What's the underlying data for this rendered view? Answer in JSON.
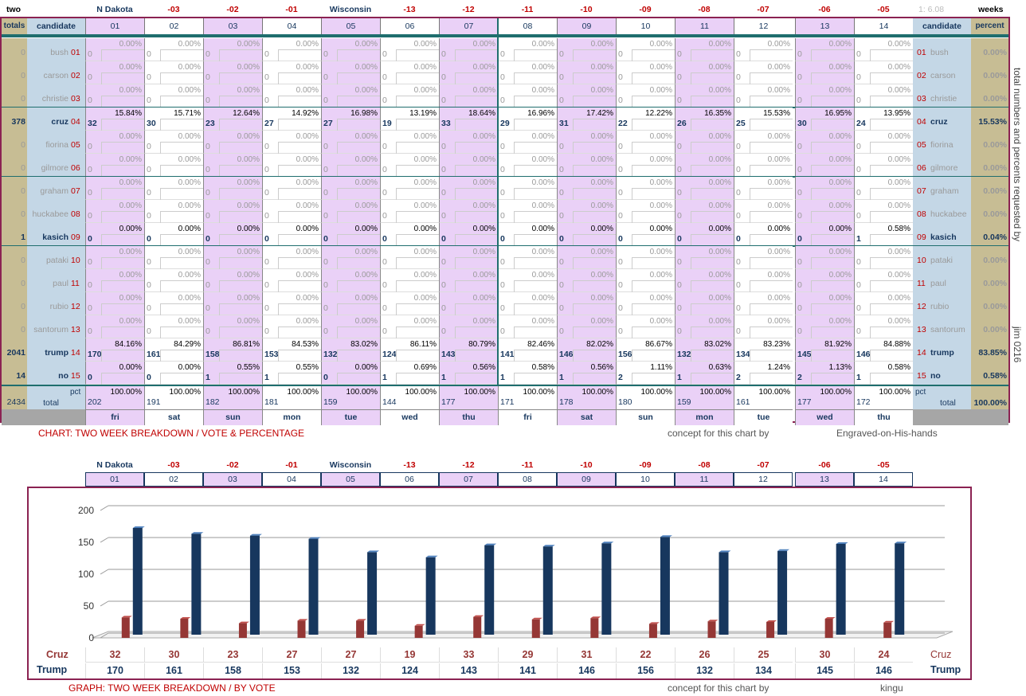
{
  "top": {
    "left_label": "two",
    "right_label": "weeks",
    "version_label": "1: 6.08",
    "date_labels": [
      "N Dakota",
      "-03",
      "-02",
      "-01",
      "Wisconsin",
      "-13",
      "-12",
      "-11",
      "-10",
      "-09",
      "-08",
      "-07",
      "-06",
      "-05"
    ],
    "totals_header": "totals",
    "candidate_header": "candidate",
    "percent_header": "percent",
    "columns": [
      "01",
      "02",
      "03",
      "04",
      "05",
      "06",
      "07",
      "08",
      "09",
      "10",
      "11",
      "12",
      "13",
      "14"
    ],
    "days": [
      "fri",
      "sat",
      "sun",
      "mon",
      "tue",
      "wed",
      "thu",
      "fri",
      "sat",
      "sun",
      "mon",
      "tue",
      "wed",
      "thu"
    ],
    "pct_label": "pct",
    "total_label": "total",
    "grand_total": "2434",
    "grand_percent": "100.00%",
    "col_totals": [
      "202",
      "191",
      "182",
      "181",
      "159",
      "144",
      "177",
      "171",
      "178",
      "180",
      "159",
      "161",
      "177",
      "172"
    ],
    "col_total_pct": "100.00%",
    "candidates": [
      {
        "num": "01",
        "name": "bush",
        "total": "0",
        "percent": "0.00%",
        "active": false,
        "votes": [
          "0",
          "0",
          "0",
          "0",
          "0",
          "0",
          "0",
          "0",
          "0",
          "0",
          "0",
          "0",
          "0",
          "0"
        ],
        "pcts": [
          "0.00%",
          "0.00%",
          "0.00%",
          "0.00%",
          "0.00%",
          "0.00%",
          "0.00%",
          "0.00%",
          "0.00%",
          "0.00%",
          "0.00%",
          "0.00%",
          "0.00%",
          "0.00%"
        ]
      },
      {
        "num": "02",
        "name": "carson",
        "total": "0",
        "percent": "0.00%",
        "active": false,
        "votes": [
          "0",
          "0",
          "0",
          "0",
          "0",
          "0",
          "0",
          "0",
          "0",
          "0",
          "0",
          "0",
          "0",
          "0"
        ],
        "pcts": [
          "0.00%",
          "0.00%",
          "0.00%",
          "0.00%",
          "0.00%",
          "0.00%",
          "0.00%",
          "0.00%",
          "0.00%",
          "0.00%",
          "0.00%",
          "0.00%",
          "0.00%",
          "0.00%"
        ]
      },
      {
        "num": "03",
        "name": "christie",
        "total": "0",
        "percent": "0.00%",
        "active": false,
        "votes": [
          "0",
          "0",
          "0",
          "0",
          "0",
          "0",
          "0",
          "0",
          "0",
          "0",
          "0",
          "0",
          "0",
          "0"
        ],
        "pcts": [
          "0.00%",
          "0.00%",
          "0.00%",
          "0.00%",
          "0.00%",
          "0.00%",
          "0.00%",
          "0.00%",
          "0.00%",
          "0.00%",
          "0.00%",
          "0.00%",
          "0.00%",
          "0.00%"
        ]
      },
      {
        "num": "04",
        "name": "cruz",
        "total": "378",
        "percent": "15.53%",
        "active": true,
        "votes": [
          "32",
          "30",
          "23",
          "27",
          "27",
          "19",
          "33",
          "29",
          "31",
          "22",
          "26",
          "25",
          "30",
          "24"
        ],
        "pcts": [
          "15.84%",
          "15.71%",
          "12.64%",
          "14.92%",
          "16.98%",
          "13.19%",
          "18.64%",
          "16.96%",
          "17.42%",
          "12.22%",
          "16.35%",
          "15.53%",
          "16.95%",
          "13.95%"
        ]
      },
      {
        "num": "05",
        "name": "fiorina",
        "total": "0",
        "percent": "0.00%",
        "active": false,
        "votes": [
          "0",
          "0",
          "0",
          "0",
          "0",
          "0",
          "0",
          "0",
          "0",
          "0",
          "0",
          "0",
          "0",
          "0"
        ],
        "pcts": [
          "0.00%",
          "0.00%",
          "0.00%",
          "0.00%",
          "0.00%",
          "0.00%",
          "0.00%",
          "0.00%",
          "0.00%",
          "0.00%",
          "0.00%",
          "0.00%",
          "0.00%",
          "0.00%"
        ]
      },
      {
        "num": "06",
        "name": "gilmore",
        "total": "0",
        "percent": "0.00%",
        "active": false,
        "votes": [
          "0",
          "0",
          "0",
          "0",
          "0",
          "0",
          "0",
          "0",
          "0",
          "0",
          "0",
          "0",
          "0",
          "0"
        ],
        "pcts": [
          "0.00%",
          "0.00%",
          "0.00%",
          "0.00%",
          "0.00%",
          "0.00%",
          "0.00%",
          "0.00%",
          "0.00%",
          "0.00%",
          "0.00%",
          "0.00%",
          "0.00%",
          "0.00%"
        ]
      },
      {
        "num": "07",
        "name": "graham",
        "total": "0",
        "percent": "0.00%",
        "active": false,
        "votes": [
          "0",
          "0",
          "0",
          "0",
          "0",
          "0",
          "0",
          "0",
          "0",
          "0",
          "0",
          "0",
          "0",
          "0"
        ],
        "pcts": [
          "0.00%",
          "0.00%",
          "0.00%",
          "0.00%",
          "0.00%",
          "0.00%",
          "0.00%",
          "0.00%",
          "0.00%",
          "0.00%",
          "0.00%",
          "0.00%",
          "0.00%",
          "0.00%"
        ]
      },
      {
        "num": "08",
        "name": "huckabee",
        "total": "0",
        "percent": "0.00%",
        "active": false,
        "votes": [
          "0",
          "0",
          "0",
          "0",
          "0",
          "0",
          "0",
          "0",
          "0",
          "0",
          "0",
          "0",
          "0",
          "0"
        ],
        "pcts": [
          "0.00%",
          "0.00%",
          "0.00%",
          "0.00%",
          "0.00%",
          "0.00%",
          "0.00%",
          "0.00%",
          "0.00%",
          "0.00%",
          "0.00%",
          "0.00%",
          "0.00%",
          "0.00%"
        ]
      },
      {
        "num": "09",
        "name": "kasich",
        "total": "1",
        "percent": "0.04%",
        "active": true,
        "votes": [
          "0",
          "0",
          "0",
          "0",
          "0",
          "0",
          "0",
          "0",
          "0",
          "0",
          "0",
          "0",
          "0",
          "1"
        ],
        "pcts": [
          "0.00%",
          "0.00%",
          "0.00%",
          "0.00%",
          "0.00%",
          "0.00%",
          "0.00%",
          "0.00%",
          "0.00%",
          "0.00%",
          "0.00%",
          "0.00%",
          "0.00%",
          "0.58%"
        ]
      },
      {
        "num": "10",
        "name": "pataki",
        "total": "0",
        "percent": "0.00%",
        "active": false,
        "votes": [
          "0",
          "0",
          "0",
          "0",
          "0",
          "0",
          "0",
          "0",
          "0",
          "0",
          "0",
          "0",
          "0",
          "0"
        ],
        "pcts": [
          "0.00%",
          "0.00%",
          "0.00%",
          "0.00%",
          "0.00%",
          "0.00%",
          "0.00%",
          "0.00%",
          "0.00%",
          "0.00%",
          "0.00%",
          "0.00%",
          "0.00%",
          "0.00%"
        ]
      },
      {
        "num": "11",
        "name": "paul",
        "total": "0",
        "percent": "0.00%",
        "active": false,
        "votes": [
          "0",
          "0",
          "0",
          "0",
          "0",
          "0",
          "0",
          "0",
          "0",
          "0",
          "0",
          "0",
          "0",
          "0"
        ],
        "pcts": [
          "0.00%",
          "0.00%",
          "0.00%",
          "0.00%",
          "0.00%",
          "0.00%",
          "0.00%",
          "0.00%",
          "0.00%",
          "0.00%",
          "0.00%",
          "0.00%",
          "0.00%",
          "0.00%"
        ]
      },
      {
        "num": "12",
        "name": "rubio",
        "total": "0",
        "percent": "0.00%",
        "active": false,
        "votes": [
          "0",
          "0",
          "0",
          "0",
          "0",
          "0",
          "0",
          "0",
          "0",
          "0",
          "0",
          "0",
          "0",
          "0"
        ],
        "pcts": [
          "0.00%",
          "0.00%",
          "0.00%",
          "0.00%",
          "0.00%",
          "0.00%",
          "0.00%",
          "0.00%",
          "0.00%",
          "0.00%",
          "0.00%",
          "0.00%",
          "0.00%",
          "0.00%"
        ]
      },
      {
        "num": "13",
        "name": "santorum",
        "total": "0",
        "percent": "0.00%",
        "active": false,
        "votes": [
          "0",
          "0",
          "0",
          "0",
          "0",
          "0",
          "0",
          "0",
          "0",
          "0",
          "0",
          "0",
          "0",
          "0"
        ],
        "pcts": [
          "0.00%",
          "0.00%",
          "0.00%",
          "0.00%",
          "0.00%",
          "0.00%",
          "0.00%",
          "0.00%",
          "0.00%",
          "0.00%",
          "0.00%",
          "0.00%",
          "0.00%",
          "0.00%"
        ]
      },
      {
        "num": "14",
        "name": "trump",
        "total": "2041",
        "percent": "83.85%",
        "active": true,
        "votes": [
          "170",
          "161",
          "158",
          "153",
          "132",
          "124",
          "143",
          "141",
          "146",
          "156",
          "132",
          "134",
          "145",
          "146"
        ],
        "pcts": [
          "84.16%",
          "84.29%",
          "86.81%",
          "84.53%",
          "83.02%",
          "86.11%",
          "80.79%",
          "82.46%",
          "82.02%",
          "86.67%",
          "83.02%",
          "83.23%",
          "81.92%",
          "84.88%"
        ]
      },
      {
        "num": "15",
        "name": "no",
        "total": "14",
        "percent": "0.58%",
        "active": true,
        "votes": [
          "0",
          "0",
          "1",
          "1",
          "0",
          "1",
          "1",
          "1",
          "1",
          "2",
          "1",
          "2",
          "2",
          "1"
        ],
        "pcts": [
          "0.00%",
          "0.00%",
          "0.55%",
          "0.55%",
          "0.00%",
          "0.69%",
          "0.56%",
          "0.58%",
          "0.56%",
          "1.11%",
          "0.63%",
          "1.24%",
          "1.13%",
          "0.58%"
        ]
      }
    ],
    "side_note": "total numbers and percents requested by",
    "side_author": "jim 0216",
    "chart_caption": "CHART: TWO WEEK BREAKDOWN / VOTE & PERCENTAGE",
    "concept_label": "concept for this chart by",
    "concept_author": "Engraved-on-His-hands"
  },
  "bottom": {
    "date_labels": [
      "N Dakota",
      "-03",
      "-02",
      "-01",
      "Wisconsin",
      "-13",
      "-12",
      "-11",
      "-10",
      "-09",
      "-08",
      "-07",
      "-06",
      "-05"
    ],
    "columns": [
      "01",
      "02",
      "03",
      "04",
      "05",
      "06",
      "07",
      "08",
      "09",
      "10",
      "11",
      "12",
      "13",
      "14"
    ],
    "caption": "GRAPH: TWO WEEK BREAKDOWN / BY VOTE",
    "concept_label": "concept for this chart by",
    "concept_author": "kingu",
    "row_labels": {
      "cruz": "Cruz",
      "trump": "Trump"
    }
  },
  "chart_data": {
    "type": "bar",
    "categories": [
      "01",
      "02",
      "03",
      "04",
      "05",
      "06",
      "07",
      "08",
      "09",
      "10",
      "11",
      "12",
      "13",
      "14"
    ],
    "series": [
      {
        "name": "Cruz",
        "values": [
          32,
          30,
          23,
          27,
          27,
          19,
          33,
          29,
          31,
          22,
          26,
          25,
          30,
          24
        ],
        "color": "#953735"
      },
      {
        "name": "Trump",
        "values": [
          170,
          161,
          158,
          153,
          132,
          124,
          143,
          141,
          146,
          156,
          132,
          134,
          145,
          146
        ],
        "color": "#17375e"
      }
    ],
    "yticks": [
      0,
      50,
      100,
      150,
      200
    ],
    "ylim": [
      0,
      200
    ],
    "grid": true
  }
}
